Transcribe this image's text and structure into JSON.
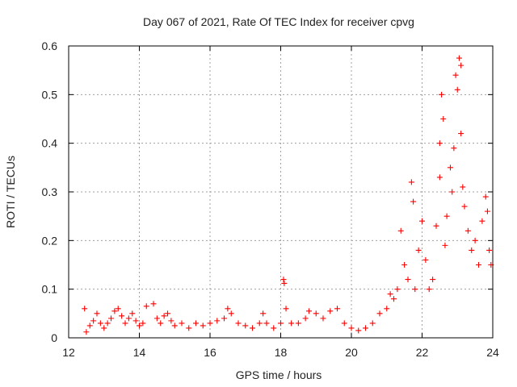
{
  "chart_data": {
    "type": "scatter",
    "title": "Day 067 of 2021, Rate Of TEC Index for receiver cpvg",
    "xlabel": "GPS time / hours",
    "ylabel": "ROTI / TECUs",
    "xlim": [
      12,
      24
    ],
    "ylim": [
      0,
      0.6
    ],
    "xticks": [
      "12",
      "14",
      "16",
      "18",
      "20",
      "22",
      "24"
    ],
    "yticks": [
      "0",
      "0.1",
      "0.2",
      "0.3",
      "0.4",
      "0.5",
      "0.6"
    ],
    "grid": true,
    "marker": "plus",
    "color": "#ff0000",
    "series": [
      {
        "points": [
          [
            12.45,
            0.06
          ],
          [
            12.5,
            0.012
          ],
          [
            12.6,
            0.025
          ],
          [
            12.7,
            0.035
          ],
          [
            12.8,
            0.05
          ],
          [
            12.9,
            0.03
          ],
          [
            13.0,
            0.02
          ],
          [
            13.1,
            0.03
          ],
          [
            13.2,
            0.04
          ],
          [
            13.3,
            0.055
          ],
          [
            13.4,
            0.06
          ],
          [
            13.5,
            0.045
          ],
          [
            13.6,
            0.03
          ],
          [
            13.7,
            0.04
          ],
          [
            13.8,
            0.05
          ],
          [
            13.9,
            0.035
          ],
          [
            14.0,
            0.025
          ],
          [
            14.1,
            0.03
          ],
          [
            14.2,
            0.065
          ],
          [
            14.4,
            0.07
          ],
          [
            14.5,
            0.04
          ],
          [
            14.6,
            0.03
          ],
          [
            14.7,
            0.045
          ],
          [
            14.8,
            0.05
          ],
          [
            14.9,
            0.035
          ],
          [
            15.0,
            0.025
          ],
          [
            15.2,
            0.03
          ],
          [
            15.4,
            0.02
          ],
          [
            15.6,
            0.03
          ],
          [
            15.8,
            0.025
          ],
          [
            16.0,
            0.03
          ],
          [
            16.2,
            0.035
          ],
          [
            16.4,
            0.04
          ],
          [
            16.5,
            0.06
          ],
          [
            16.6,
            0.05
          ],
          [
            16.8,
            0.03
          ],
          [
            17.0,
            0.025
          ],
          [
            17.2,
            0.02
          ],
          [
            17.4,
            0.03
          ],
          [
            17.5,
            0.05
          ],
          [
            17.6,
            0.03
          ],
          [
            17.8,
            0.02
          ],
          [
            18.0,
            0.03
          ],
          [
            18.08,
            0.12
          ],
          [
            18.1,
            0.112
          ],
          [
            18.15,
            0.06
          ],
          [
            18.3,
            0.03
          ],
          [
            18.5,
            0.03
          ],
          [
            18.7,
            0.04
          ],
          [
            18.8,
            0.055
          ],
          [
            19.0,
            0.05
          ],
          [
            19.2,
            0.04
          ],
          [
            19.4,
            0.055
          ],
          [
            19.6,
            0.06
          ],
          [
            19.8,
            0.03
          ],
          [
            20.0,
            0.02
          ],
          [
            20.2,
            0.015
          ],
          [
            20.4,
            0.02
          ],
          [
            20.6,
            0.03
          ],
          [
            20.8,
            0.05
          ],
          [
            21.0,
            0.06
          ],
          [
            21.1,
            0.09
          ],
          [
            21.2,
            0.08
          ],
          [
            21.3,
            0.1
          ],
          [
            21.4,
            0.22
          ],
          [
            21.5,
            0.15
          ],
          [
            21.6,
            0.12
          ],
          [
            21.7,
            0.32
          ],
          [
            21.75,
            0.28
          ],
          [
            21.8,
            0.1
          ],
          [
            21.9,
            0.18
          ],
          [
            22.0,
            0.24
          ],
          [
            22.1,
            0.16
          ],
          [
            22.2,
            0.1
          ],
          [
            22.3,
            0.12
          ],
          [
            22.4,
            0.23
          ],
          [
            22.5,
            0.33
          ],
          [
            22.5,
            0.4
          ],
          [
            22.55,
            0.5
          ],
          [
            22.6,
            0.45
          ],
          [
            22.65,
            0.19
          ],
          [
            22.7,
            0.25
          ],
          [
            22.8,
            0.35
          ],
          [
            22.85,
            0.3
          ],
          [
            22.9,
            0.39
          ],
          [
            22.95,
            0.54
          ],
          [
            23.0,
            0.51
          ],
          [
            23.05,
            0.575
          ],
          [
            23.1,
            0.56
          ],
          [
            23.1,
            0.42
          ],
          [
            23.15,
            0.31
          ],
          [
            23.2,
            0.27
          ],
          [
            23.3,
            0.22
          ],
          [
            23.4,
            0.18
          ],
          [
            23.5,
            0.2
          ],
          [
            23.6,
            0.15
          ],
          [
            23.7,
            0.24
          ],
          [
            23.8,
            0.29
          ],
          [
            23.85,
            0.26
          ],
          [
            23.9,
            0.18
          ],
          [
            23.95,
            0.15
          ]
        ]
      }
    ]
  }
}
